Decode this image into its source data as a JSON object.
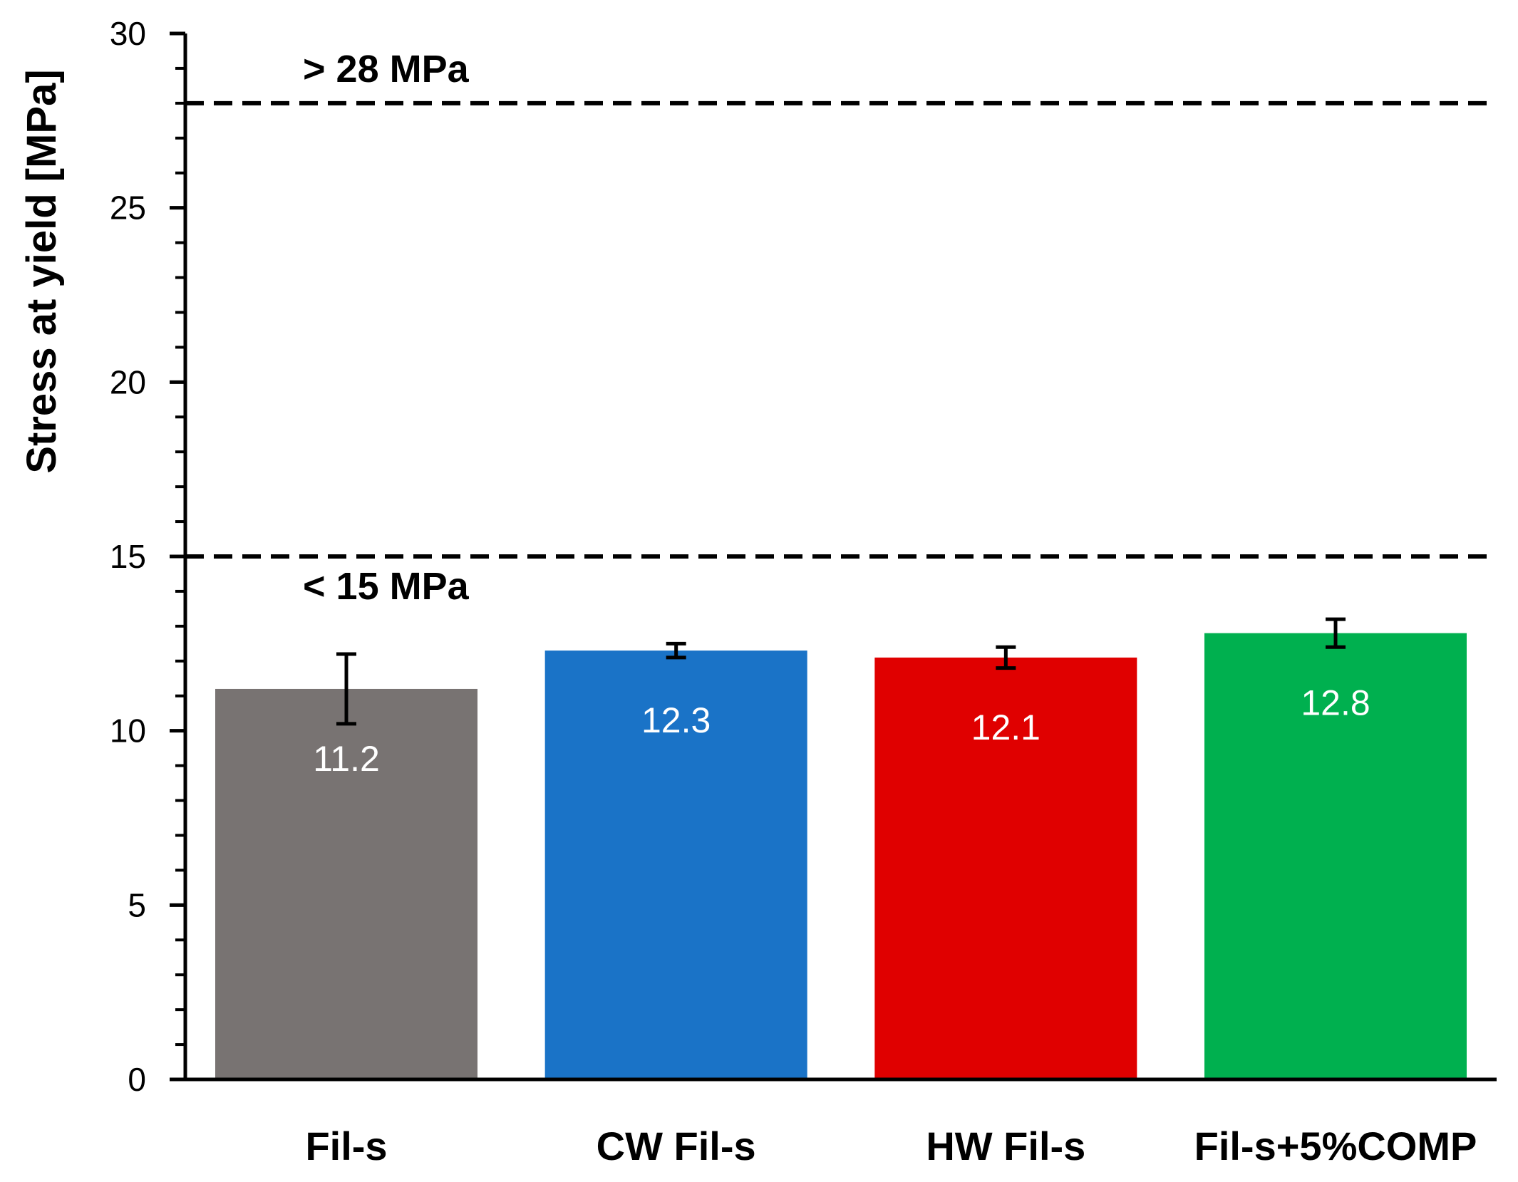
{
  "chart_data": {
    "type": "bar",
    "categories": [
      "Fil-s",
      "CW Fil-s",
      "HW Fil-s",
      "Fil-s+5%COMP"
    ],
    "values": [
      11.2,
      12.3,
      12.1,
      12.8
    ],
    "value_labels": [
      "11.2",
      "12.3",
      "12.1",
      "12.8"
    ],
    "errors": [
      1.0,
      0.2,
      0.3,
      0.4
    ],
    "colors": [
      "#787372",
      "#1a73c7",
      "#e00000",
      "#00b04f"
    ],
    "title": "",
    "xlabel": "",
    "ylabel": "Stress at yield [MPa]",
    "ylim": [
      0,
      30
    ],
    "yticks": [
      0,
      5,
      10,
      15,
      20,
      25,
      30
    ],
    "ytick_labels": [
      "0",
      "5",
      "10",
      "15",
      "20",
      "25",
      "30"
    ],
    "minor_tick_step": 1,
    "grid": false,
    "reference_lines": [
      {
        "value": 28,
        "label": "> 28 MPa",
        "label_position": "above"
      },
      {
        "value": 15,
        "label": "< 15 MPa",
        "label_position": "below"
      }
    ]
  }
}
